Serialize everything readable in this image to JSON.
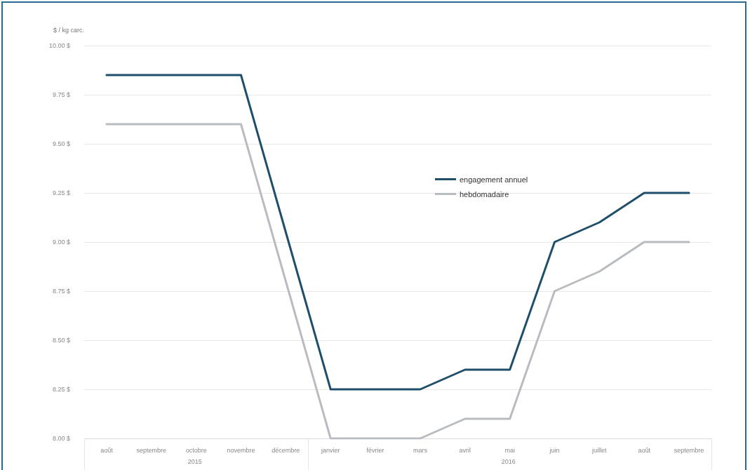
{
  "chart_data": {
    "type": "line",
    "ylabel": "$ / kg carc.",
    "categories": [
      "août",
      "septembre",
      "octobre",
      "novembre",
      "décembre",
      "janvier",
      "février",
      "mars",
      "avril",
      "mai",
      "juin",
      "juillet",
      "août",
      "septembre"
    ],
    "series": [
      {
        "name": "engagement annuel",
        "color": "#1f4e6b",
        "values": [
          9.85,
          9.85,
          9.85,
          9.85,
          9.05,
          8.25,
          8.25,
          8.25,
          8.35,
          8.35,
          9.0,
          9.1,
          9.25,
          9.25
        ]
      },
      {
        "name": "hebdomadaire",
        "color": "#b8bcc0",
        "values": [
          9.6,
          9.6,
          9.6,
          9.6,
          8.8,
          8.0,
          8.0,
          8.0,
          8.1,
          8.1,
          8.75,
          8.85,
          9.0,
          9.0
        ]
      }
    ],
    "ylim": [
      8,
      10
    ],
    "yticks": [
      {
        "value": 8,
        "label": "8.00 $"
      },
      {
        "value": 8.25,
        "label": "8.25 $"
      },
      {
        "value": 8.5,
        "label": "8.50 $"
      },
      {
        "value": 8.75,
        "label": "8.75 $"
      },
      {
        "value": 9,
        "label": "9.00 $"
      },
      {
        "value": 9.25,
        "label": "9.25 $"
      },
      {
        "value": 9.5,
        "label": "9.50 $"
      },
      {
        "value": 9.75,
        "label": "9.75 $"
      },
      {
        "value": 10,
        "label": "10.00 $"
      }
    ],
    "annotations": [
      "2015",
      "2016"
    ],
    "grid": "y",
    "legend": "center",
    "marker": "none",
    "line_style": "solid"
  }
}
